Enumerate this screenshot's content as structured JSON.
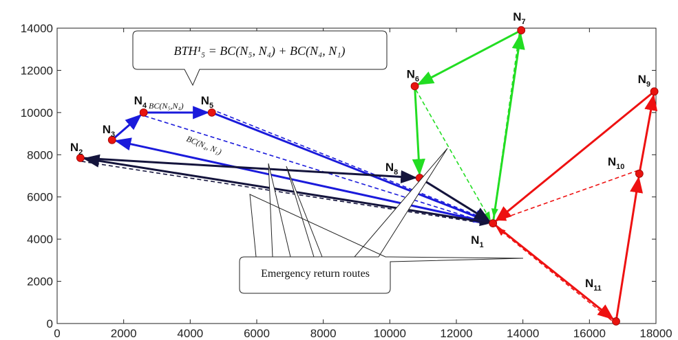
{
  "chart_data": {
    "type": "line",
    "xlim": [
      0,
      18000
    ],
    "ylim": [
      0,
      14000
    ],
    "x_ticks": [
      0,
      2000,
      4000,
      6000,
      8000,
      10000,
      12000,
      14000,
      16000,
      18000
    ],
    "y_ticks": [
      0,
      2000,
      4000,
      6000,
      8000,
      10000,
      12000,
      14000
    ],
    "grid": false,
    "nodes": [
      {
        "id": "N1",
        "base": "N",
        "sub": "1",
        "x": 13100,
        "y": 4750
      },
      {
        "id": "N2",
        "base": "N",
        "sub": "2",
        "x": 700,
        "y": 7850
      },
      {
        "id": "N3",
        "base": "N",
        "sub": "3",
        "x": 1650,
        "y": 8700
      },
      {
        "id": "N4",
        "base": "N",
        "sub": "4",
        "x": 2600,
        "y": 10000
      },
      {
        "id": "N5",
        "base": "N",
        "sub": "5",
        "x": 4650,
        "y": 10000
      },
      {
        "id": "N6",
        "base": "N",
        "sub": "6",
        "x": 10750,
        "y": 11250
      },
      {
        "id": "N7",
        "base": "N",
        "sub": "7",
        "x": 13950,
        "y": 13900
      },
      {
        "id": "N8",
        "base": "N",
        "sub": "8",
        "x": 10900,
        "y": 6900
      },
      {
        "id": "N9",
        "base": "N",
        "sub": "9",
        "x": 17950,
        "y": 11000
      },
      {
        "id": "N10",
        "base": "N",
        "sub": "10",
        "x": 17500,
        "y": 7100
      },
      {
        "id": "N11",
        "base": "N",
        "sub": "11",
        "x": 16800,
        "y": 100
      }
    ],
    "routes": [
      {
        "name": "blue",
        "color": "#1a1adb",
        "style": "solid",
        "path": [
          "N1",
          "N3",
          "N4",
          "N5",
          "N1"
        ]
      },
      {
        "name": "black",
        "color": "#14143c",
        "style": "solid",
        "path": [
          "N1",
          "N2",
          "N8",
          "N1"
        ]
      },
      {
        "name": "green",
        "color": "#22dd22",
        "style": "solid",
        "path": [
          "N1",
          "N7",
          "N6",
          "N8"
        ]
      },
      {
        "name": "red",
        "color": "#ee1111",
        "style": "solid",
        "path": [
          "N1",
          "N11",
          "N10",
          "N9",
          "N1"
        ]
      }
    ],
    "return_routes": [
      {
        "color": "#1a1adb",
        "from": "N4",
        "to": "N1"
      },
      {
        "color": "#1a1adb",
        "from": "N5",
        "to": "N1"
      },
      {
        "color": "#14143c",
        "from": "N2",
        "to": "N1"
      },
      {
        "color": "#22dd22",
        "from": "N7",
        "to": "N1"
      },
      {
        "color": "#22dd22",
        "from": "N6",
        "to": "N1"
      },
      {
        "color": "#ee1111",
        "from": "N10",
        "to": "N1"
      },
      {
        "color": "#ee1111",
        "from": "N11",
        "to": "N1"
      }
    ],
    "annotations": {
      "formula_box": "BTH¹₅ = BC(N₅, N₄) + BC(N₄, N₁)",
      "label_n5_n4": "BC(N₅,N₄)",
      "label_n4_n1": "BC(N₄, N₁)",
      "callout": "Emergency return routes"
    }
  }
}
